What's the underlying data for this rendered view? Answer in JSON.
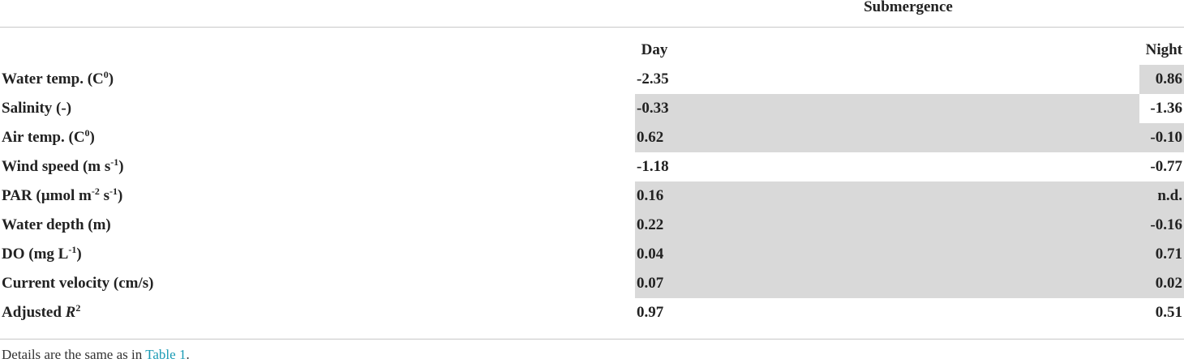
{
  "table": {
    "group_header": "Submergence",
    "columns": [
      "Day",
      "Night"
    ],
    "rows": [
      {
        "label": [
          "Water temp. (C",
          {
            "sup": "0"
          },
          ")"
        ],
        "cells": [
          {
            "text": "-2.35",
            "shaded": false
          },
          {
            "text": "0.86",
            "shaded": true
          }
        ]
      },
      {
        "label": [
          "Salinity (-)"
        ],
        "cells": [
          {
            "text": "-0.33",
            "shaded": true
          },
          {
            "text": "-1.36",
            "shaded": false
          }
        ]
      },
      {
        "label": [
          "Air temp. (C",
          {
            "sup": "0"
          },
          ")"
        ],
        "cells": [
          {
            "text": "0.62",
            "shaded": true
          },
          {
            "text": "-0.10",
            "shaded": true
          }
        ]
      },
      {
        "label": [
          "Wind speed (m s",
          {
            "sup": "-1"
          },
          ")"
        ],
        "cells": [
          {
            "text": "-1.18",
            "shaded": false
          },
          {
            "text": "-0.77",
            "shaded": false
          }
        ]
      },
      {
        "label": [
          "PAR (µmol m",
          {
            "sup": "-2"
          },
          " s",
          {
            "sup": "-1"
          },
          ")"
        ],
        "cells": [
          {
            "text": "0.16",
            "shaded": true
          },
          {
            "text": "n.d.",
            "shaded": true
          }
        ]
      },
      {
        "label": [
          "Water depth (m)"
        ],
        "cells": [
          {
            "text": "0.22",
            "shaded": true
          },
          {
            "text": "-0.16",
            "shaded": true
          }
        ]
      },
      {
        "label": [
          "DO (mg L",
          {
            "sup": "-1"
          },
          ")"
        ],
        "cells": [
          {
            "text": "0.04",
            "shaded": true
          },
          {
            "text": "0.71",
            "shaded": true
          }
        ]
      },
      {
        "label": [
          "Current velocity (cm/s)"
        ],
        "cells": [
          {
            "text": "0.07",
            "shaded": true
          },
          {
            "text": "0.02",
            "shaded": true
          }
        ]
      },
      {
        "label": [
          "Adjusted ",
          {
            "italic": "R"
          },
          {
            "sup": "2"
          }
        ],
        "cells": [
          {
            "text": "0.97",
            "shaded": false
          },
          {
            "text": "0.51",
            "shaded": false
          }
        ]
      }
    ],
    "footnote": {
      "text": "Details are the same as in ",
      "link": "Table 1",
      "end": "."
    }
  }
}
